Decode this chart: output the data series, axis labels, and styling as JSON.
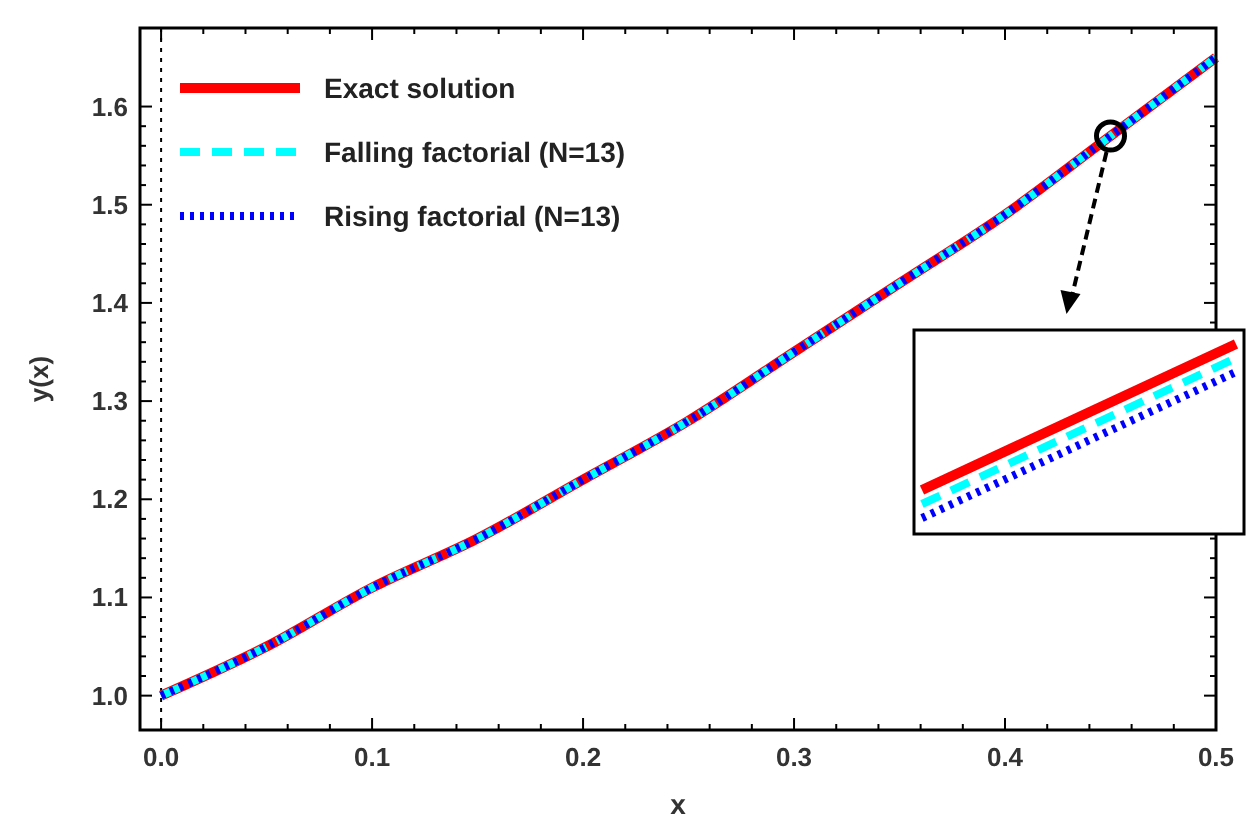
{
  "chart_data": {
    "type": "line",
    "xlabel": "x",
    "ylabel": "y(x)",
    "x": [
      0,
      0.05,
      0.1,
      0.15,
      0.2,
      0.25,
      0.3,
      0.35,
      0.4,
      0.45,
      0.5
    ],
    "series": [
      {
        "name": "Exact solution",
        "color": "#ff0000",
        "line_style": "solid",
        "values": [
          1.0,
          1.05,
          1.11,
          1.16,
          1.22,
          1.28,
          1.35,
          1.42,
          1.49,
          1.57,
          1.65
        ]
      },
      {
        "name": "Falling factorial (N=13)",
        "color": "#00ffff",
        "line_style": "dashed",
        "values": [
          1.0,
          1.05,
          1.11,
          1.16,
          1.22,
          1.28,
          1.35,
          1.42,
          1.49,
          1.57,
          1.65
        ]
      },
      {
        "name": "Rising factorial (N=13)",
        "color": "#0000ff",
        "line_style": "dotted",
        "values": [
          1.0,
          1.05,
          1.11,
          1.16,
          1.22,
          1.28,
          1.35,
          1.42,
          1.49,
          1.57,
          1.65
        ]
      }
    ],
    "xlim": [
      -0.01,
      0.5
    ],
    "ylim": [
      0.965,
      1.68
    ],
    "xticks": [
      {
        "value": 0,
        "label": "0.0"
      },
      0.1,
      0.2,
      0.3,
      0.4,
      0.5
    ],
    "yticks": [
      {
        "value": 1,
        "label": "1.0"
      },
      1.1,
      1.2,
      1.3,
      1.4,
      1.5,
      1.6
    ],
    "ref_lines": [
      {
        "axis": "x",
        "value": 0,
        "color": "#000000",
        "line_style": "dotted"
      }
    ],
    "grid": false,
    "legend": "top left"
  }
}
